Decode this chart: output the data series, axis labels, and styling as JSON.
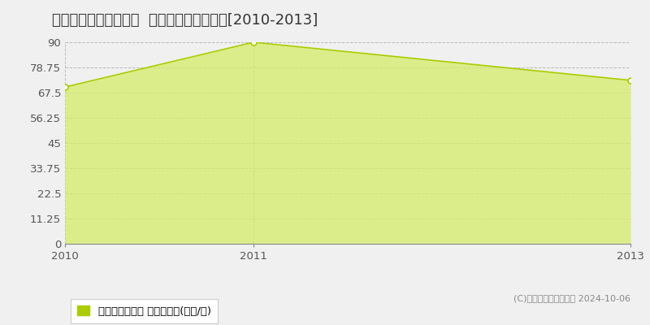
{
  "title": "静岡市駿河区緑が丘町  マンション価格推移[2010-2013]",
  "years": [
    2010,
    2011,
    2013
  ],
  "values": [
    70.0,
    90.0,
    73.0
  ],
  "yticks": [
    0,
    11.25,
    22.5,
    33.75,
    45,
    56.25,
    67.5,
    78.75,
    90
  ],
  "ymax": 90,
  "line_color": "#aacc00",
  "fill_color": "#d4ed6a",
  "fill_alpha": 0.75,
  "marker_color": "#ffffff",
  "marker_edge_color": "#aacc00",
  "grid_color": "#bbbbbb",
  "bg_color": "#f0f0f0",
  "plot_bg_color": "#f0f0f0",
  "legend_label": "マンション価格 平均坪単価(万円/坪)",
  "copyright": "(C)土地価格ドットコム 2024-10-06",
  "xlabel_years": [
    2010,
    2011,
    2013
  ],
  "title_fontsize": 13,
  "tick_fontsize": 9.5
}
